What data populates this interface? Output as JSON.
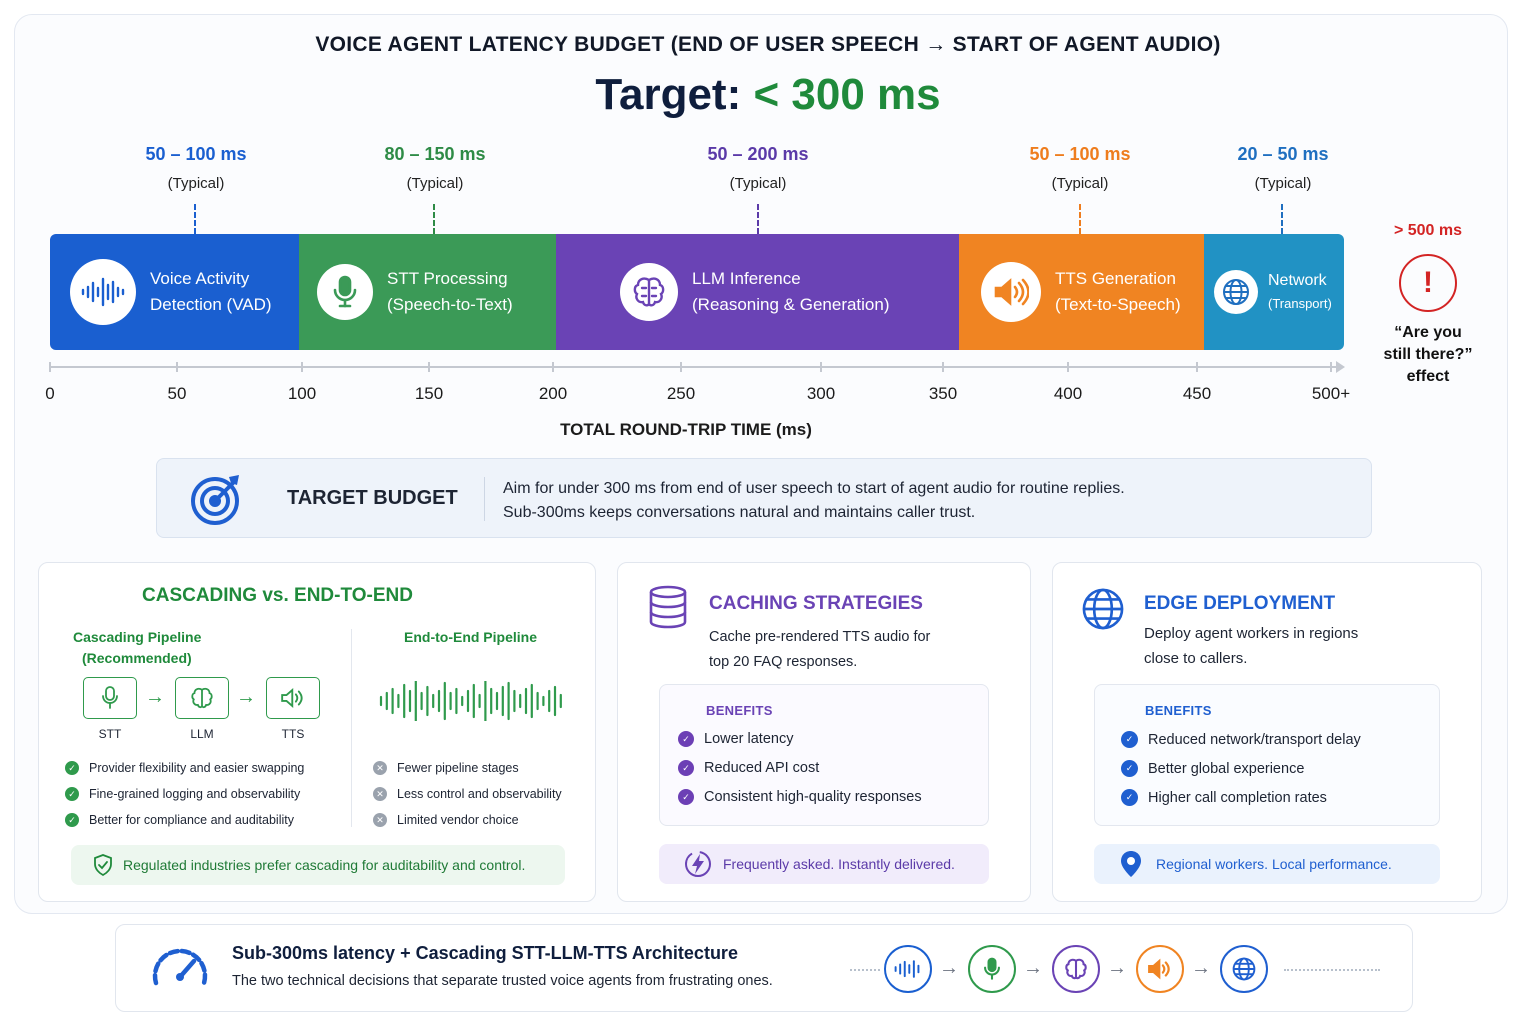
{
  "header": {
    "title": "VOICE AGENT LATENCY BUDGET (END OF USER SPEECH → START OF AGENT AUDIO)",
    "target_prefix": "Target:",
    "target_value": "< 300 ms"
  },
  "stages": [
    {
      "range": "50 – 100 ms",
      "typical": "(Typical)",
      "line1": "Voice Activity",
      "line2": "Detection (VAD)",
      "icon": "waveform-icon",
      "color": "#1a5fd0",
      "range_color": "#1a5fd0"
    },
    {
      "range": "80 – 150 ms",
      "typical": "(Typical)",
      "line1": "STT Processing",
      "line2": "(Speech-to-Text)",
      "icon": "microphone-icon",
      "color": "#3b9a57",
      "range_color": "#2e8b46"
    },
    {
      "range": "50 – 200 ms",
      "typical": "(Typical)",
      "line1": "LLM Inference",
      "line2": "(Reasoning & Generation)",
      "icon": "brain-icon",
      "color": "#6a43b5",
      "range_color": "#5b3aa8"
    },
    {
      "range": "50 – 100 ms",
      "typical": "(Typical)",
      "line1": "TTS Generation",
      "line2": "(Text-to-Speech)",
      "icon": "speaker-icon",
      "color": "#f08422",
      "range_color": "#ee7d1e"
    },
    {
      "range": "20 – 50 ms",
      "typical": "(Typical)",
      "line1": "Network",
      "line2": "(Transport)",
      "icon": "globe-icon",
      "color": "#2192c4",
      "range_color": "#1f6fc0"
    }
  ],
  "axis": {
    "ticks": [
      "0",
      "50",
      "100",
      "150",
      "200",
      "250",
      "300",
      "350",
      "400",
      "450",
      "500+"
    ],
    "title": "TOTAL ROUND-TRIP TIME (ms)"
  },
  "warning": {
    "threshold": "> 500 ms",
    "symbol": "!",
    "line1": "“Are you",
    "line2": "still there?”",
    "line3": "effect"
  },
  "budget": {
    "title": "TARGET BUDGET",
    "line1": "Aim for under 300 ms from end of user speech to start of agent audio for routine replies.",
    "line2": "Sub-300ms keeps conversations natural and maintains caller trust."
  },
  "cascading": {
    "title": "CASCADING vs. END-TO-END",
    "left_head1": "Cascading Pipeline",
    "left_head2": "(Recommended)",
    "right_head": "End-to-End Pipeline",
    "steps": [
      "STT",
      "LLM",
      "TTS"
    ],
    "pros": [
      "Provider flexibility and easier swapping",
      "Fine-grained logging and observability",
      "Better for compliance and auditability"
    ],
    "cons": [
      "Fewer pipeline stages",
      "Less control and observability",
      "Limited vendor choice"
    ],
    "footer": "Regulated industries prefer cascading for auditability and control."
  },
  "caching": {
    "title": "CACHING STRATEGIES",
    "desc1": "Cache pre-rendered TTS audio for",
    "desc2": "top 20 FAQ responses.",
    "benefits_title": "BENEFITS",
    "benefits": [
      "Lower latency",
      "Reduced API cost",
      "Consistent high-quality responses"
    ],
    "footer": "Frequently asked. Instantly delivered."
  },
  "edge": {
    "title": "EDGE DEPLOYMENT",
    "desc1": "Deploy agent workers in regions",
    "desc2": "close to callers.",
    "benefits_title": "BENEFITS",
    "benefits": [
      "Reduced network/transport delay",
      "Better global experience",
      "Higher call completion rates"
    ],
    "footer": "Regional workers. Local performance."
  },
  "summary": {
    "title": "Sub-300ms latency + Cascading STT-LLM-TTS Architecture",
    "subtitle": "The two technical decisions that separate trusted voice agents from frustrating ones.",
    "flow_icons": [
      "waveform-icon",
      "microphone-icon",
      "brain-icon",
      "speaker-icon",
      "globe-icon"
    ]
  },
  "colors": {
    "green": "#1f8a3b",
    "red": "#d32424",
    "purple": "#6a43b5",
    "blue": "#1f5fd0"
  }
}
